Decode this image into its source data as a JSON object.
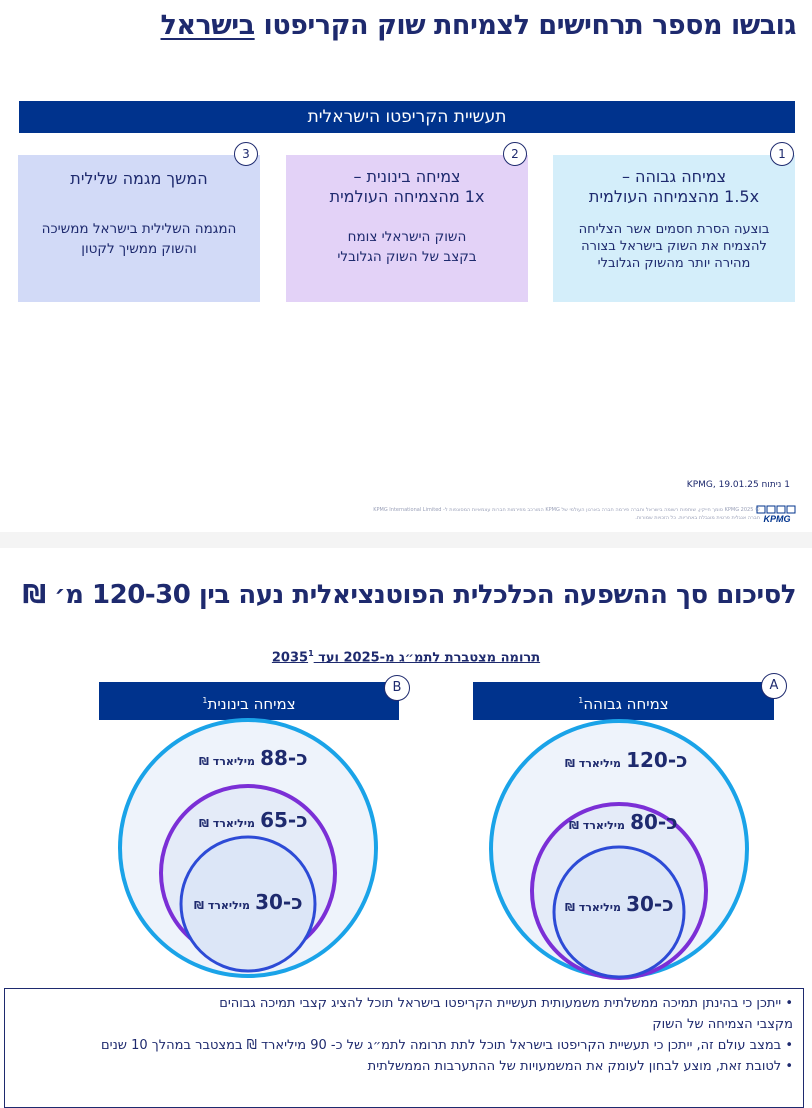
{
  "slide1": {
    "title_main": "גובשו מספר תרחישים לצמיחת שוק הקריפטו ",
    "title_underlined": "בישראל",
    "banner": "תעשיית הקריפטו הישראלית",
    "cards": [
      {
        "num": "1",
        "title_line1": "צמיחה גבוהה –",
        "title_line2": "1.5x מהצמיחה העולמית",
        "body": [
          "בוצעה הסרת חסמים אשר הצליחה",
          "להצמיח את השוק בישראל בצורה",
          "מהירה יותר מהשוק הגלובלי"
        ]
      },
      {
        "num": "2",
        "title_line1": "צמיחה בינונית –",
        "title_line2": "1x מהצמיחה העולמית",
        "body": [
          "השוק הישראלי צומח",
          "בקצב של השוק הגלובלי"
        ]
      },
      {
        "num": "3",
        "title_line1": "המשך מגמה שלילית",
        "title_line2": "",
        "body": [
          "המגמה השלילית בישראל ממשיכה",
          "והשוק ממשיך לקטון"
        ]
      }
    ],
    "source": "1 ניתוח KPMG, 19.01.25",
    "legal_line1": "© 2025 KPMG סומך חייקין, שותפות רשומה בישראל וחברה פירמה חברה בארגון העולמי של KPMG המורכב מפירמות חברות עצמאיות המסונפות ל- KPMG International Limited",
    "legal_line2": "חברה אנגלית פרטית מוגבלת באחריות. כל הזכויות שמורות.",
    "logo_text": "KPMG"
  },
  "slide2": {
    "title": "לסיכום סך ההשפעה הכלכלית הפוטנציאלית נעה בין 120-30 מ׳ ₪",
    "subtitle": "תרומה מצטברת לתמ״ג מ-2025 ועד 2035",
    "subtitle_sup": "1",
    "scenarios": [
      {
        "badge": "A",
        "header": "צמיחה גבוהה",
        "header_sup": "1",
        "outer": {
          "num": "כ-120",
          "unit": "מיליארד ₪"
        },
        "middle": {
          "num": "כ-80",
          "unit": "מיליארד ₪"
        },
        "inner": {
          "num": "כ-30",
          "unit": "מיליארד ₪"
        }
      },
      {
        "badge": "B",
        "header": "צמיחה בינונית",
        "header_sup": "1",
        "outer": {
          "num": "כ-88",
          "unit": "מיליארד ₪"
        },
        "middle": {
          "num": "כ-65",
          "unit": "מיליארד ₪"
        },
        "inner": {
          "num": "כ-30",
          "unit": "מיליארד ₪"
        }
      }
    ],
    "notes": [
      "•  ייתכן כי בהינתן תמיכה ממשלתית משמעותית תעשיית הקריפטו בישראל תוכל להציג קצבי תמיכה גבוהים",
      "מקצבי הצמיחה של השוק",
      "•  במצב עולם זה, ייתכן כי תעשיית הקריפטו בישראל תוכל לתת תרומה לתמ״ג של כ- 90 מיליארד ₪ במצטבר במהלך 10 שנים",
      "•  לטובת זאת, מוצע לבחון לעומק את המשמעויות של ההתערבות הממשלתית"
    ],
    "colors": {
      "outer_ring": "#1aa3e8",
      "middle_ring": "#7b2fd6",
      "inner_ring": "#2d4bd6",
      "header_bg": "#00338d"
    }
  }
}
